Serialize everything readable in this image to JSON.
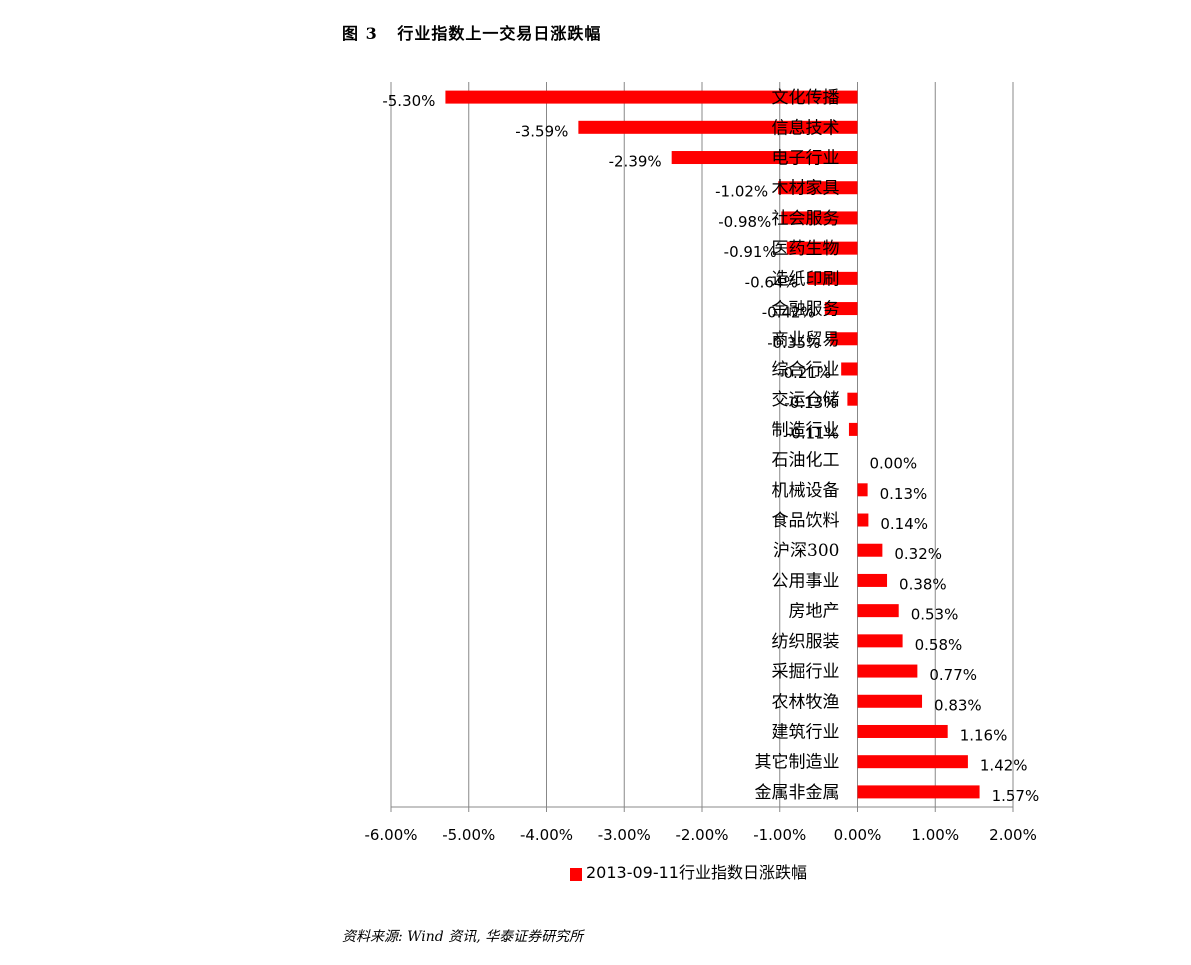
{
  "figure_title": "图 3   行业指数上一交易日涨跌幅",
  "source_note": "资料来源: Wind 资讯, 华泰证券研究所",
  "colors": {
    "bar": "#ff0000",
    "grid": "#888888",
    "axis": "#888888"
  },
  "chart_data": {
    "type": "bar",
    "orientation": "horizontal",
    "title": "",
    "xlabel": "",
    "ylabel": "",
    "xlim": [
      -0.06,
      0.02
    ],
    "x_ticks": [
      -0.06,
      -0.05,
      -0.04,
      -0.03,
      -0.02,
      -0.01,
      0,
      0.01,
      0.02
    ],
    "x_tick_labels": [
      "-6.00%",
      "-5.00%",
      "-4.00%",
      "-3.00%",
      "-2.00%",
      "-1.00%",
      "0.00%",
      "1.00%",
      "2.00%"
    ],
    "grid": "vertical",
    "legend_position": "bottom",
    "series": [
      {
        "name": "2013-09-11行业指数日涨跌幅",
        "color": "#ff0000",
        "categories": [
          "文化传播",
          "信息技术",
          "电子行业",
          "木材家具",
          "社会服务",
          "医药生物",
          "造纸印刷",
          "金融服务",
          "商业贸易",
          "综合行业",
          "交运仓储",
          "制造行业",
          "石油化工",
          "机械设备",
          "食品饮料",
          "沪深300",
          "公用事业",
          "房地产",
          "纺织服装",
          "采掘行业",
          "农林牧渔",
          "建筑行业",
          "其它制造业",
          "金属非金属"
        ],
        "values": [
          -0.053,
          -0.0359,
          -0.0239,
          -0.0102,
          -0.0098,
          -0.0091,
          -0.0064,
          -0.0042,
          -0.0035,
          -0.0021,
          -0.0013,
          -0.0011,
          0.0,
          0.0013,
          0.0014,
          0.0032,
          0.0038,
          0.0053,
          0.0058,
          0.0077,
          0.0083,
          0.0116,
          0.0142,
          0.0157
        ],
        "value_labels": [
          "-5.30%",
          "-3.59%",
          "-2.39%",
          "-1.02%",
          "-0.98%",
          "-0.91%",
          "-0.64%",
          "-0.42%",
          "-0.35%",
          "-0.21%",
          "-0.13%",
          "-0.11%",
          "0.00%",
          "0.13%",
          "0.14%",
          "0.32%",
          "0.38%",
          "0.53%",
          "0.58%",
          "0.77%",
          "0.83%",
          "1.16%",
          "1.42%",
          "1.57%"
        ]
      }
    ]
  }
}
